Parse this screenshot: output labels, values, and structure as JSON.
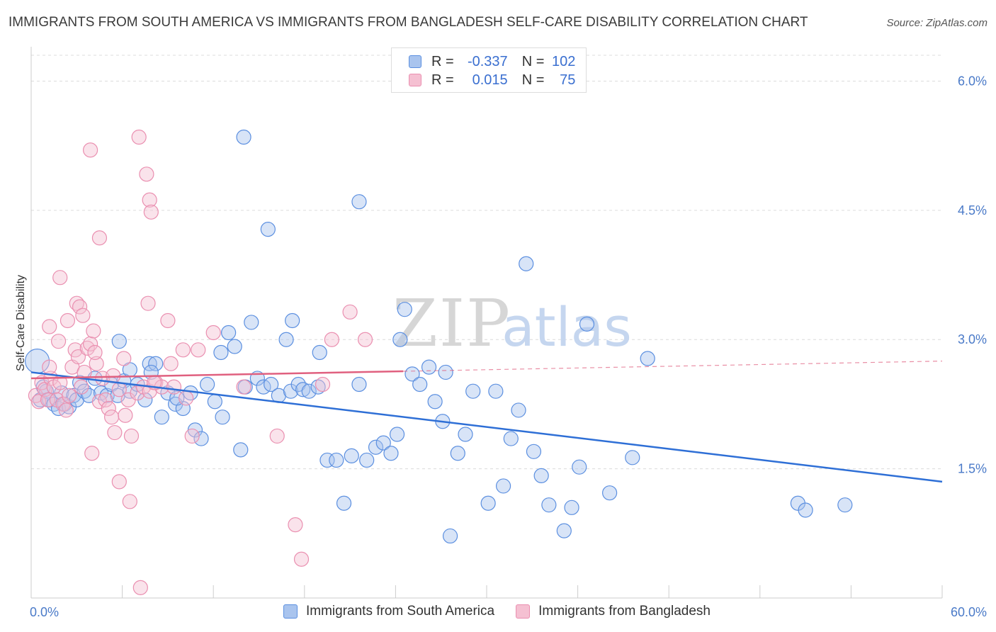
{
  "chart_data": {
    "type": "scatter",
    "title": "IMMIGRANTS FROM SOUTH AMERICA VS IMMIGRANTS FROM BANGLADESH SELF-CARE DISABILITY CORRELATION CHART",
    "source": "Source: ZipAtlas.com",
    "ylabel": "Self-Care Disability",
    "xlim": [
      0,
      60
    ],
    "ylim": [
      0,
      6.3
    ],
    "x_tick_labels": [
      "0.0%",
      "60.0%"
    ],
    "y_ticks": [
      {
        "value": 1.5,
        "label": "1.5%"
      },
      {
        "value": 3.0,
        "label": "3.0%"
      },
      {
        "value": 4.5,
        "label": "4.5%"
      },
      {
        "value": 6.0,
        "label": "6.0%"
      }
    ],
    "watermark": {
      "zip": "ZIP",
      "atlas": "atlas"
    },
    "legend": {
      "r_label": "R =",
      "n_label": "N ="
    },
    "series": [
      {
        "name": "Immigrants from South America",
        "color": "#5b8fe0",
        "fill": "#a9c4ee",
        "line_color": "#2e6fd6",
        "R": "-0.337",
        "N": "102",
        "trend": {
          "x": [
            0,
            60
          ],
          "y": [
            2.62,
            1.35
          ],
          "dashed_from": null
        },
        "points": [
          [
            0.4,
            2.75
          ],
          [
            0.6,
            2.3
          ],
          [
            0.8,
            2.45
          ],
          [
            1.0,
            2.4
          ],
          [
            1.2,
            2.3
          ],
          [
            1.5,
            2.25
          ],
          [
            1.8,
            2.2
          ],
          [
            2.0,
            2.38
          ],
          [
            2.2,
            2.25
          ],
          [
            2.5,
            2.22
          ],
          [
            2.8,
            2.35
          ],
          [
            3.0,
            2.3
          ],
          [
            3.2,
            2.5
          ],
          [
            3.5,
            2.4
          ],
          [
            3.8,
            2.35
          ],
          [
            4.2,
            2.55
          ],
          [
            4.6,
            2.38
          ],
          [
            5.0,
            2.35
          ],
          [
            5.3,
            2.48
          ],
          [
            5.7,
            2.35
          ],
          [
            6.1,
            2.52
          ],
          [
            6.5,
            2.4
          ],
          [
            7.0,
            2.48
          ],
          [
            7.5,
            2.3
          ],
          [
            7.8,
            2.72
          ],
          [
            8.2,
            2.72
          ],
          [
            8.6,
            2.1
          ],
          [
            9.0,
            2.38
          ],
          [
            9.5,
            2.25
          ],
          [
            10.0,
            2.2
          ],
          [
            10.5,
            2.38
          ],
          [
            10.8,
            1.95
          ],
          [
            11.2,
            1.85
          ],
          [
            11.6,
            2.48
          ],
          [
            12.1,
            2.28
          ],
          [
            12.6,
            2.1
          ],
          [
            13.0,
            3.08
          ],
          [
            13.4,
            2.92
          ],
          [
            13.8,
            1.72
          ],
          [
            14.1,
            2.45
          ],
          [
            14.5,
            3.2
          ],
          [
            14.9,
            2.55
          ],
          [
            15.3,
            2.45
          ],
          [
            15.8,
            2.48
          ],
          [
            16.3,
            2.35
          ],
          [
            16.8,
            3.0
          ],
          [
            17.1,
            2.4
          ],
          [
            17.6,
            2.48
          ],
          [
            17.9,
            2.42
          ],
          [
            18.3,
            2.4
          ],
          [
            18.9,
            2.45
          ],
          [
            19.5,
            1.6
          ],
          [
            20.1,
            1.6
          ],
          [
            20.6,
            1.1
          ],
          [
            21.1,
            1.65
          ],
          [
            21.6,
            2.48
          ],
          [
            22.1,
            1.6
          ],
          [
            22.7,
            1.75
          ],
          [
            23.2,
            1.8
          ],
          [
            23.7,
            1.68
          ],
          [
            24.1,
            1.9
          ],
          [
            24.6,
            3.35
          ],
          [
            25.1,
            2.6
          ],
          [
            25.6,
            2.48
          ],
          [
            26.2,
            2.68
          ],
          [
            26.6,
            2.28
          ],
          [
            27.1,
            2.05
          ],
          [
            27.6,
            0.72
          ],
          [
            28.1,
            1.68
          ],
          [
            28.6,
            1.9
          ],
          [
            29.1,
            2.4
          ],
          [
            30.1,
            1.1
          ],
          [
            30.6,
            2.4
          ],
          [
            31.1,
            1.3
          ],
          [
            31.6,
            1.85
          ],
          [
            32.1,
            2.18
          ],
          [
            32.6,
            3.88
          ],
          [
            33.1,
            1.7
          ],
          [
            33.6,
            1.42
          ],
          [
            34.1,
            1.08
          ],
          [
            35.1,
            0.78
          ],
          [
            35.6,
            1.05
          ],
          [
            36.1,
            1.52
          ],
          [
            36.6,
            3.18
          ],
          [
            38.1,
            1.22
          ],
          [
            39.6,
            1.63
          ],
          [
            40.6,
            2.78
          ],
          [
            50.5,
            1.1
          ],
          [
            51.0,
            1.02
          ],
          [
            53.6,
            1.08
          ],
          [
            14.0,
            5.35
          ],
          [
            15.6,
            4.28
          ],
          [
            21.6,
            4.6
          ],
          [
            5.8,
            2.98
          ],
          [
            6.5,
            2.65
          ],
          [
            7.9,
            2.62
          ],
          [
            9.6,
            2.32
          ],
          [
            12.5,
            2.85
          ],
          [
            17.2,
            3.22
          ],
          [
            19.0,
            2.85
          ],
          [
            24.3,
            3.0
          ],
          [
            27.3,
            2.62
          ]
        ]
      },
      {
        "name": "Immigrants from Bangladesh",
        "color": "#ea8fb0",
        "fill": "#f5c0d2",
        "line_color": "#e0607f",
        "R": "0.015",
        "N": "75",
        "trend": {
          "x": [
            0,
            60
          ],
          "y": [
            2.55,
            2.75
          ],
          "dashed_from": 24.5
        },
        "points": [
          [
            0.3,
            2.35
          ],
          [
            0.5,
            2.28
          ],
          [
            0.7,
            2.5
          ],
          [
            0.9,
            2.42
          ],
          [
            1.1,
            2.3
          ],
          [
            1.3,
            2.55
          ],
          [
            1.5,
            2.45
          ],
          [
            1.7,
            2.3
          ],
          [
            1.9,
            2.5
          ],
          [
            2.1,
            2.25
          ],
          [
            2.3,
            2.18
          ],
          [
            2.5,
            2.35
          ],
          [
            2.7,
            2.68
          ],
          [
            2.9,
            2.88
          ],
          [
            3.1,
            2.8
          ],
          [
            3.3,
            2.45
          ],
          [
            3.5,
            2.62
          ],
          [
            3.7,
            2.9
          ],
          [
            3.9,
            2.95
          ],
          [
            4.1,
            3.1
          ],
          [
            4.3,
            2.72
          ],
          [
            4.5,
            2.28
          ],
          [
            4.7,
            2.55
          ],
          [
            4.9,
            2.3
          ],
          [
            5.1,
            2.2
          ],
          [
            5.3,
            2.1
          ],
          [
            5.5,
            1.92
          ],
          [
            5.8,
            2.42
          ],
          [
            6.1,
            2.78
          ],
          [
            6.4,
            2.3
          ],
          [
            6.6,
            1.88
          ],
          [
            7.0,
            2.38
          ],
          [
            7.4,
            2.45
          ],
          [
            7.8,
            2.4
          ],
          [
            8.2,
            2.5
          ],
          [
            8.6,
            2.45
          ],
          [
            9.0,
            3.22
          ],
          [
            9.4,
            2.45
          ],
          [
            10.0,
            2.88
          ],
          [
            10.6,
            1.88
          ],
          [
            11.0,
            2.88
          ],
          [
            12.0,
            3.08
          ],
          [
            14.0,
            2.45
          ],
          [
            16.2,
            1.88
          ],
          [
            17.4,
            0.85
          ],
          [
            17.8,
            0.45
          ],
          [
            19.2,
            2.48
          ],
          [
            19.8,
            3.0
          ],
          [
            21.0,
            3.32
          ],
          [
            22.0,
            3.0
          ],
          [
            7.1,
            5.35
          ],
          [
            3.9,
            5.2
          ],
          [
            7.6,
            4.92
          ],
          [
            7.8,
            4.62
          ],
          [
            7.9,
            4.48
          ],
          [
            4.5,
            4.18
          ],
          [
            1.9,
            3.72
          ],
          [
            3.0,
            3.42
          ],
          [
            3.2,
            3.38
          ],
          [
            7.7,
            3.42
          ],
          [
            1.2,
            3.15
          ],
          [
            1.8,
            2.98
          ],
          [
            2.4,
            3.22
          ],
          [
            3.4,
            3.28
          ],
          [
            4.2,
            2.85
          ],
          [
            5.4,
            2.58
          ],
          [
            6.2,
            2.12
          ],
          [
            8.1,
            2.5
          ],
          [
            9.2,
            2.72
          ],
          [
            10.2,
            2.32
          ],
          [
            1.2,
            2.68
          ],
          [
            4.0,
            1.68
          ],
          [
            5.8,
            1.35
          ],
          [
            6.5,
            1.12
          ],
          [
            7.2,
            0.12
          ]
        ]
      }
    ]
  }
}
